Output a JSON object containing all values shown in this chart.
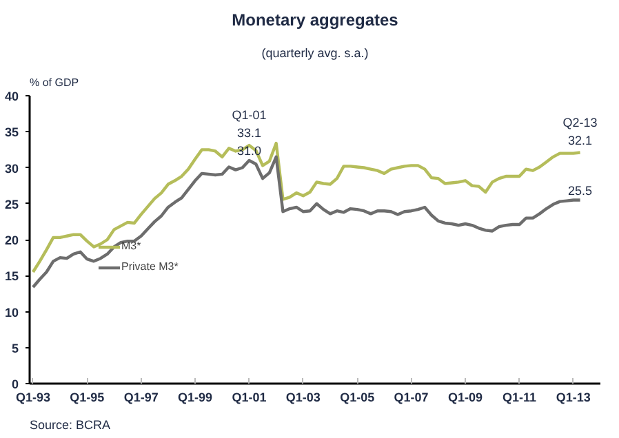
{
  "chart_data": {
    "type": "line",
    "title": "Monetary aggregates",
    "subtitle": "(quarterly avg. s.a.)",
    "ylabel": "% of GDP",
    "categories": [
      "Q1-93",
      null,
      null,
      null,
      null,
      null,
      null,
      null,
      "Q1-95",
      null,
      null,
      null,
      null,
      null,
      null,
      null,
      "Q1-97",
      null,
      null,
      null,
      null,
      null,
      null,
      null,
      "Q1-99",
      null,
      null,
      null,
      null,
      null,
      null,
      null,
      "Q1-01",
      null,
      null,
      null,
      null,
      null,
      null,
      null,
      "Q1-03",
      null,
      null,
      null,
      null,
      null,
      null,
      null,
      "Q1-05",
      null,
      null,
      null,
      null,
      null,
      null,
      null,
      "Q1-07",
      null,
      null,
      null,
      null,
      null,
      null,
      null,
      "Q1-09",
      null,
      null,
      null,
      null,
      null,
      null,
      null,
      "Q1-11",
      null,
      null,
      null,
      null,
      null,
      null,
      null,
      "Q1-13",
      null
    ],
    "series": [
      {
        "name": "M3*",
        "color": "#b5bd5a",
        "values": [
          15.5,
          17.0,
          18.6,
          20.3,
          20.3,
          20.5,
          20.7,
          20.7,
          19.8,
          19.0,
          19.4,
          20.0,
          21.4,
          21.9,
          22.4,
          22.3,
          23.5,
          24.6,
          25.7,
          26.5,
          27.7,
          28.2,
          28.8,
          29.8,
          31.2,
          32.5,
          32.5,
          32.3,
          31.5,
          32.7,
          32.3,
          32.5,
          33.1,
          32.4,
          30.3,
          30.9,
          33.4,
          25.6,
          25.9,
          26.5,
          26.1,
          26.6,
          28.0,
          27.8,
          27.7,
          28.5,
          30.2,
          30.2,
          30.1,
          30.0,
          29.8,
          29.6,
          29.2,
          29.8,
          30.0,
          30.2,
          30.3,
          30.3,
          29.8,
          28.6,
          28.5,
          27.8,
          27.9,
          28.0,
          28.2,
          27.5,
          27.4,
          26.6,
          28.0,
          28.5,
          28.8,
          28.8,
          28.8,
          29.8,
          29.6,
          30.1,
          30.8,
          31.5,
          32.0,
          32.0,
          32.0,
          32.1
        ]
      },
      {
        "name": "Private M3*",
        "color": "#6d6d6d",
        "values": [
          13.4,
          14.5,
          15.5,
          17.0,
          17.5,
          17.4,
          18.0,
          18.3,
          17.3,
          17.0,
          17.4,
          18.0,
          19.0,
          19.6,
          19.8,
          19.8,
          20.5,
          21.5,
          22.5,
          23.3,
          24.5,
          25.2,
          25.8,
          27.0,
          28.2,
          29.2,
          29.1,
          29.0,
          29.1,
          30.1,
          29.7,
          30.0,
          31.0,
          30.5,
          28.5,
          29.3,
          31.5,
          23.9,
          24.3,
          24.5,
          23.9,
          24.0,
          25.0,
          24.2,
          23.6,
          24.0,
          23.8,
          24.3,
          24.2,
          24.0,
          23.6,
          24.0,
          24.0,
          23.9,
          23.5,
          23.9,
          24.0,
          24.2,
          24.5,
          23.4,
          22.6,
          22.3,
          22.2,
          22.0,
          22.2,
          22.0,
          21.6,
          21.3,
          21.2,
          21.8,
          22.0,
          22.1,
          22.1,
          23.0,
          23.0,
          23.6,
          24.3,
          24.9,
          25.3,
          25.4,
          25.5,
          25.5
        ]
      }
    ],
    "ylim": [
      0,
      40
    ],
    "yticks": [
      0,
      5,
      10,
      15,
      20,
      25,
      30,
      35,
      40
    ],
    "annotations": [
      {
        "text": "Q1-01\n33.1",
        "x": "Q1-01",
        "y": 33.1
      },
      {
        "text": "31.0",
        "x": "Q1-01",
        "y": 31.0
      },
      {
        "text": "Q2-13\n32.1",
        "y": 32.1
      },
      {
        "text": "25.5",
        "y": 25.5
      },
      "Source: BCRA"
    ],
    "grid": false,
    "legend": "left",
    "line_style": "solid",
    "marker": "none"
  }
}
